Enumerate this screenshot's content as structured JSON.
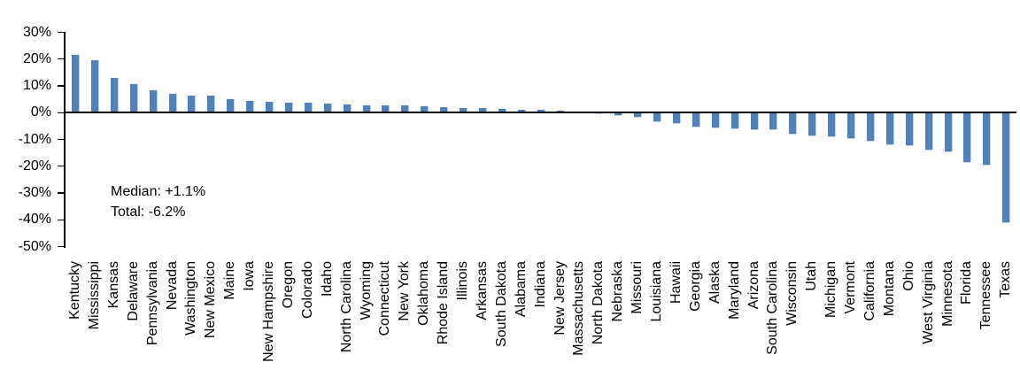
{
  "chart_data": {
    "type": "bar",
    "title": "",
    "xlabel": "",
    "ylabel": "",
    "ylim": [
      -50,
      30
    ],
    "grid": false,
    "legend_position": "none",
    "bar_color": "#4F81BD",
    "bar_edge_color": "#C3D4EA",
    "axis_color": "#000000",
    "yticks": [
      {
        "label": "30%",
        "value": 30
      },
      {
        "label": "20%",
        "value": 20
      },
      {
        "label": "10%",
        "value": 10
      },
      {
        "label": "0%",
        "value": 0
      },
      {
        "label": "-10%",
        "value": -10
      },
      {
        "label": "-20%",
        "value": -20
      },
      {
        "label": "-30%",
        "value": -30
      },
      {
        "label": "-40%",
        "value": -40
      },
      {
        "label": "-50%",
        "value": -50
      }
    ],
    "categories": [
      "Kentucky",
      "Mississippi",
      "Kansas",
      "Delaware",
      "Pennsylvania",
      "Nevada",
      "Washington",
      "New Mexico",
      "Maine",
      "Iowa",
      "New Hampshire",
      "Oregon",
      "Colorado",
      "Idaho",
      "North Carolina",
      "Wyoming",
      "Connecticut",
      "New York",
      "Oklahoma",
      "Rhode Island",
      "Illinois",
      "Arkansas",
      "South Dakota",
      "Alabama",
      "Indiana",
      "New Jersey",
      "Massachusetts",
      "North Dakota",
      "Nebraska",
      "Missouri",
      "Louisiana",
      "Hawaii",
      "Georgia",
      "Alaska",
      "Maryland",
      "Arizona",
      "South Carolina",
      "Wisconsin",
      "Utah",
      "Michigan",
      "Vermont",
      "California",
      "Montana",
      "Ohio",
      "West Virginia",
      "Minnesota",
      "Florida",
      "Tennessee",
      "Texas"
    ],
    "values": [
      21.6,
      19.5,
      13.0,
      10.6,
      8.4,
      7.1,
      6.5,
      6.3,
      5.2,
      4.4,
      4.1,
      3.8,
      3.6,
      3.4,
      3.2,
      2.9,
      2.8,
      2.6,
      2.5,
      2.1,
      1.9,
      1.7,
      1.5,
      1.2,
      1.1,
      0.7,
      0.5,
      -0.2,
      -0.8,
      -1.5,
      -3.2,
      -4.0,
      -5.2,
      -5.5,
      -5.8,
      -6.1,
      -6.3,
      -8.0,
      -8.4,
      -8.8,
      -9.5,
      -10.6,
      -11.9,
      -12.2,
      -13.9,
      -14.6,
      -18.3,
      -19.5,
      -41.0
    ],
    "annotations": [
      {
        "text": "Median: +1.1%"
      },
      {
        "text": "Total: -6.2%"
      }
    ]
  }
}
